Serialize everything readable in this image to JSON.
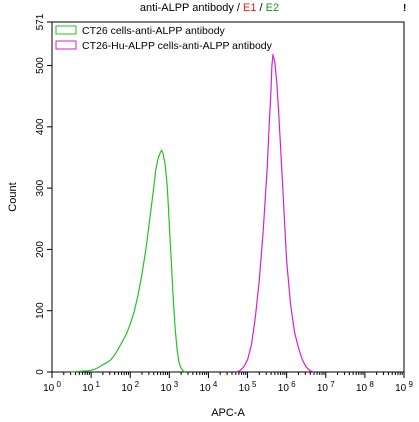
{
  "title": {
    "main": "anti-ALPP antibody",
    "separator1": " / ",
    "gate1": "E1",
    "separator2": " / ",
    "gate2": "E2",
    "gate1_color": "#e0201f",
    "gate2_color": "#1a9a1a"
  },
  "corner_marker": "!",
  "chart_data": {
    "type": "line",
    "title": "anti-ALPP antibody / E1 / E2",
    "xlabel": "APC-A",
    "ylabel": "Count",
    "x_scale": "log",
    "xlim": [
      1,
      1000000000
    ],
    "ylim": [
      0,
      571
    ],
    "x_ticks": [
      {
        "value": 1,
        "base": "10",
        "exp": "0"
      },
      {
        "value": 10,
        "base": "10",
        "exp": "1"
      },
      {
        "value": 100,
        "base": "10",
        "exp": "2"
      },
      {
        "value": 1000,
        "base": "10",
        "exp": "3"
      },
      {
        "value": 10000,
        "base": "10",
        "exp": "4"
      },
      {
        "value": 100000,
        "base": "10",
        "exp": "5"
      },
      {
        "value": 1000000,
        "base": "10",
        "exp": "6"
      },
      {
        "value": 10000000,
        "base": "10",
        "exp": "7"
      },
      {
        "value": 100000000,
        "base": "10",
        "exp": "8"
      },
      {
        "value": 1000000000,
        "base": "10",
        "exp": "9"
      }
    ],
    "y_ticks": [
      0,
      100,
      200,
      300,
      400,
      500,
      571
    ],
    "grid": false,
    "legend_position": "top-left",
    "series": [
      {
        "name": "CT26 cells-anti-ALPP antibody",
        "color": "#22c422",
        "x": [
          3,
          5,
          8,
          10,
          13,
          16,
          20,
          25,
          32,
          40,
          50,
          63,
          80,
          100,
          126,
          158,
          200,
          251,
          316,
          398,
          450,
          501,
          562,
          631,
          680,
          708,
          750,
          794,
          891,
          1000,
          1122,
          1259,
          1413,
          1585,
          1778,
          2000,
          2239,
          2512
        ],
        "y": [
          0,
          1,
          2,
          3,
          5,
          8,
          12,
          15,
          20,
          28,
          38,
          50,
          62,
          78,
          98,
          125,
          160,
          200,
          250,
          300,
          330,
          345,
          355,
          362,
          358,
          352,
          345,
          335,
          300,
          240,
          180,
          120,
          70,
          35,
          15,
          6,
          2,
          0
        ]
      },
      {
        "name": "CT26-Hu-ALPP cells-anti-ALPP antibody",
        "color": "#d321d3",
        "x": [
          50000,
          63096,
          79433,
          100000,
          125893,
          158489,
          199526,
          251189,
          316228,
          354813,
          398107,
          420000,
          446684,
          501187,
          562341,
          630957,
          707946,
          794328,
          891251,
          1000000,
          1258925,
          1584893,
          1995262,
          2511886,
          3162278,
          3981072,
          5011872
        ],
        "y": [
          0,
          2,
          8,
          20,
          45,
          90,
          150,
          230,
          330,
          400,
          460,
          500,
          518,
          505,
          470,
          420,
          360,
          300,
          240,
          180,
          110,
          65,
          40,
          20,
          8,
          2,
          0
        ]
      }
    ]
  }
}
